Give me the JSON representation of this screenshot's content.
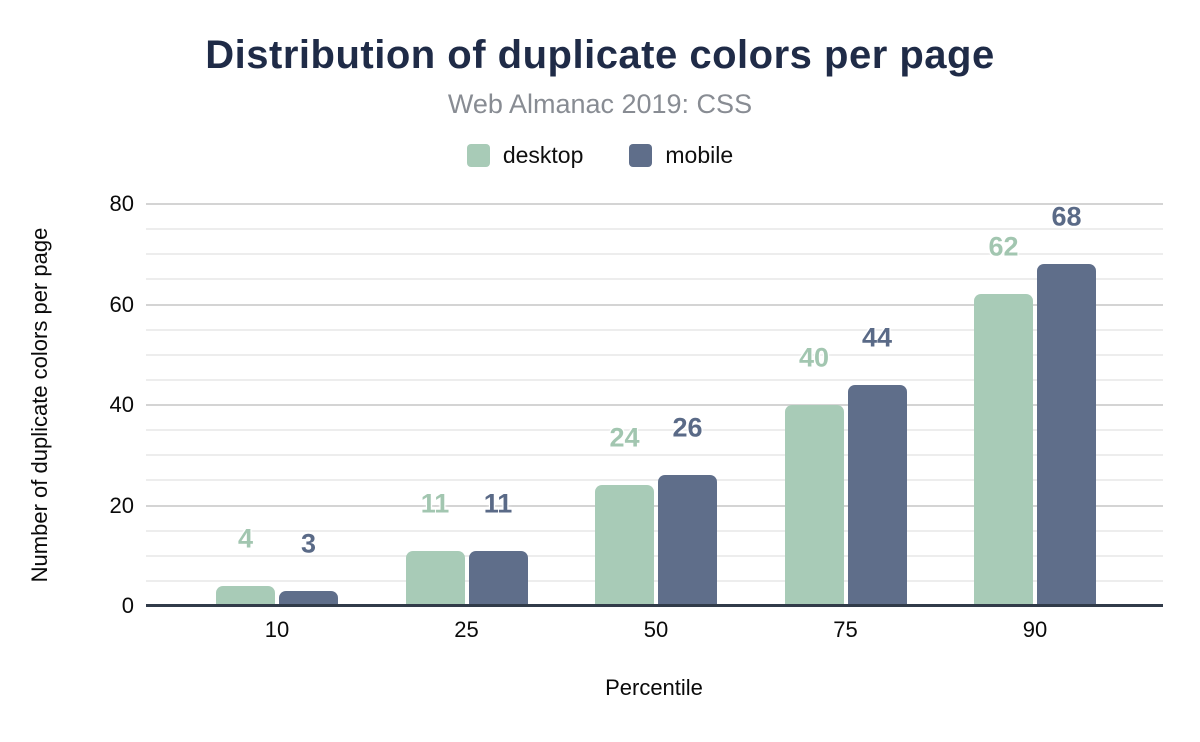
{
  "header": {
    "title": "Distribution of duplicate colors per page",
    "subtitle": "Web Almanac 2019: CSS"
  },
  "colors": {
    "title_text": "#1f2b47",
    "subtitle_text": "#888c93",
    "axis_line": "#313b49",
    "desktop": "#a8cbb7",
    "mobile": "#5f6e8a"
  },
  "chart_data": {
    "type": "bar",
    "title": "Distribution of duplicate colors per page",
    "subtitle": "Web Almanac 2019: CSS",
    "categories": [
      "10",
      "25",
      "50",
      "75",
      "90"
    ],
    "series": [
      {
        "name": "desktop",
        "color": "#a8cbb7",
        "label_color": "#a2c6b0",
        "values": [
          4,
          11,
          24,
          40,
          62
        ]
      },
      {
        "name": "mobile",
        "color": "#5f6e8a",
        "label_color": "#5a6a87",
        "values": [
          3,
          11,
          26,
          44,
          68
        ]
      }
    ],
    "xlabel": "Percentile",
    "ylabel": "Number of duplicate colors per page",
    "ylim": [
      0,
      80
    ],
    "ytick_step": 20,
    "minor_step": 5,
    "yticks": [
      "0",
      "20",
      "40",
      "60",
      "80"
    ],
    "grid": true,
    "legend_position": "top",
    "data_labels": true
  },
  "legend": [
    {
      "label": "desktop",
      "color": "#a8cbb7"
    },
    {
      "label": "mobile",
      "color": "#5f6e8a"
    }
  ]
}
